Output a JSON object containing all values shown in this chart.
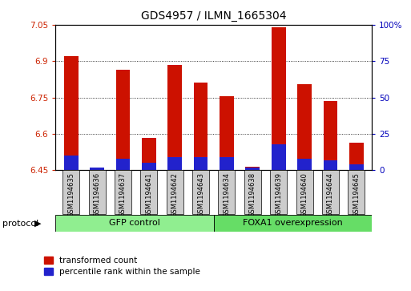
{
  "title": "GDS4957 / ILMN_1665304",
  "samples": [
    "GSM1194635",
    "GSM1194636",
    "GSM1194637",
    "GSM1194641",
    "GSM1194642",
    "GSM1194643",
    "GSM1194634",
    "GSM1194638",
    "GSM1194639",
    "GSM1194640",
    "GSM1194644",
    "GSM1194645"
  ],
  "transformed_count": [
    6.92,
    6.455,
    6.865,
    6.585,
    6.885,
    6.81,
    6.755,
    6.465,
    7.04,
    6.805,
    6.735,
    6.565
  ],
  "percentile_rank": [
    10,
    2,
    8,
    5,
    9,
    9,
    9,
    2,
    18,
    8,
    7,
    4
  ],
  "baseline": 6.45,
  "ylim_left": [
    6.45,
    7.05
  ],
  "ylim_right": [
    0,
    100
  ],
  "yticks_left": [
    6.45,
    6.6,
    6.75,
    6.9,
    7.05
  ],
  "yticks_right": [
    0,
    25,
    50,
    75,
    100
  ],
  "ytick_labels_left": [
    "6.45",
    "6.6",
    "6.75",
    "6.9",
    "7.05"
  ],
  "ytick_labels_right": [
    "0",
    "25",
    "50",
    "75",
    "100%"
  ],
  "groups": [
    {
      "label": "GFP control",
      "n": 6,
      "color": "#90EE90"
    },
    {
      "label": "FOXA1 overexpression",
      "n": 6,
      "color": "#66DD66"
    }
  ],
  "bar_color_red": "#CC1100",
  "bar_color_blue": "#2222CC",
  "bar_width": 0.55,
  "left_tick_color": "#CC2200",
  "right_tick_color": "#0000BB",
  "protocol_label": "protocol",
  "legend_items": [
    "transformed count",
    "percentile rank within the sample"
  ],
  "cell_bg": "#CCCCCC"
}
